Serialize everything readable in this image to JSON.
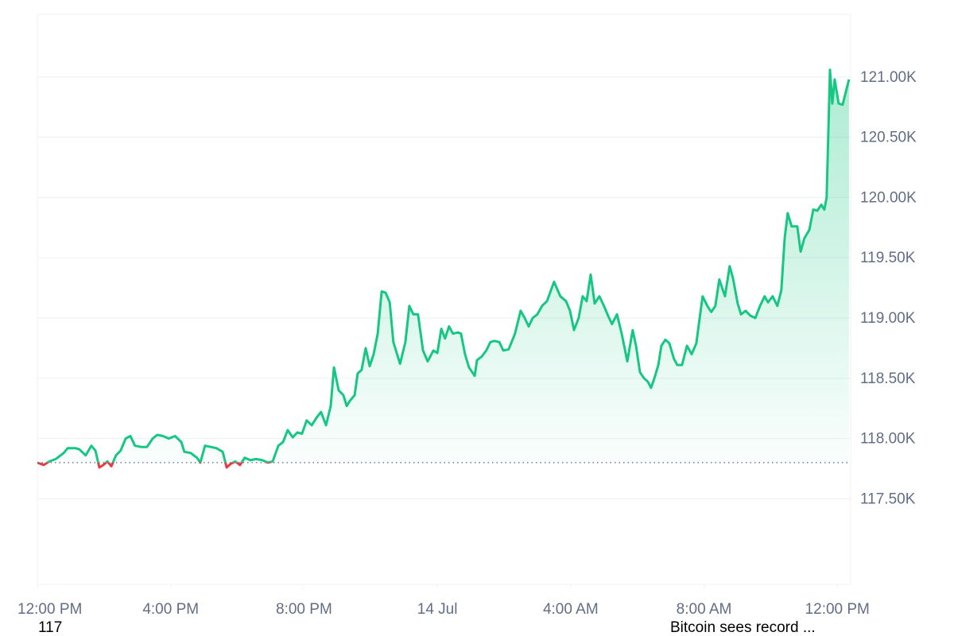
{
  "chart_data": {
    "type": "line",
    "color": "#16c784",
    "down_color": "#ea3943",
    "baseline": 117800,
    "grid": true,
    "xlim": [
      0,
      24.4
    ],
    "ylim": [
      116790,
      121520
    ],
    "xticks": [
      {
        "value": 0,
        "label": "12:00 PM"
      },
      {
        "value": 4,
        "label": "4:00 PM"
      },
      {
        "value": 8,
        "label": "8:00 PM"
      },
      {
        "value": 12,
        "label": "14 Jul"
      },
      {
        "value": 16,
        "label": "4:00 AM"
      },
      {
        "value": 20,
        "label": "8:00 AM"
      },
      {
        "value": 24,
        "label": "12:00 PM"
      }
    ],
    "yticks": [
      {
        "value": 117500,
        "label": "117.50K"
      },
      {
        "value": 118000,
        "label": "118.00K"
      },
      {
        "value": 118500,
        "label": "118.50K"
      },
      {
        "value": 119000,
        "label": "119.00K"
      },
      {
        "value": 119500,
        "label": "119.50K"
      },
      {
        "value": 120000,
        "label": "120.00K"
      },
      {
        "value": 120500,
        "label": "120.50K"
      },
      {
        "value": 121000,
        "label": "121.00K"
      }
    ],
    "annotations": [
      "117",
      "Bitcoin sees record ..."
    ],
    "x": [
      0.0,
      0.19,
      0.36,
      0.55,
      0.79,
      0.91,
      1.14,
      1.26,
      1.45,
      1.62,
      1.74,
      1.86,
      1.98,
      2.1,
      2.22,
      2.36,
      2.5,
      2.65,
      2.79,
      2.93,
      3.12,
      3.29,
      3.46,
      3.6,
      3.77,
      3.94,
      4.13,
      4.32,
      4.41,
      4.6,
      4.79,
      4.89,
      5.03,
      5.2,
      5.37,
      5.56,
      5.68,
      5.8,
      5.94,
      6.08,
      6.22,
      6.39,
      6.56,
      6.75,
      6.92,
      7.06,
      7.23,
      7.37,
      7.51,
      7.66,
      7.8,
      7.94,
      8.08,
      8.23,
      8.37,
      8.51,
      8.66,
      8.8,
      8.9,
      9.04,
      9.18,
      9.28,
      9.37,
      9.52,
      9.61,
      9.73,
      9.85,
      9.97,
      10.09,
      10.21,
      10.33,
      10.45,
      10.57,
      10.68,
      10.88,
      11.04,
      11.16,
      11.28,
      11.42,
      11.57,
      11.71,
      11.88,
      12.0,
      12.12,
      12.23,
      12.35,
      12.47,
      12.62,
      12.71,
      12.83,
      12.95,
      13.12,
      13.19,
      13.33,
      13.47,
      13.59,
      13.71,
      13.86,
      13.98,
      14.14,
      14.33,
      14.5,
      14.62,
      14.74,
      14.86,
      15.0,
      15.14,
      15.29,
      15.5,
      15.69,
      15.86,
      15.98,
      16.1,
      16.24,
      16.36,
      16.48,
      16.6,
      16.72,
      16.86,
      17.0,
      17.12,
      17.24,
      17.39,
      17.53,
      17.7,
      17.86,
      17.96,
      18.08,
      18.2,
      18.32,
      18.41,
      18.51,
      18.63,
      18.72,
      18.84,
      18.96,
      19.1,
      19.2,
      19.34,
      19.49,
      19.63,
      19.77,
      19.87,
      19.96,
      20.1,
      20.22,
      20.34,
      20.46,
      20.63,
      20.77,
      20.87,
      21.01,
      21.11,
      21.25,
      21.39,
      21.54,
      21.68,
      21.82,
      21.92,
      22.06,
      22.2,
      22.32,
      22.42,
      22.51,
      22.63,
      22.8,
      22.9,
      23.01,
      23.16,
      23.28,
      23.4,
      23.52,
      23.61,
      23.68,
      23.78,
      23.85,
      23.92,
      24.04,
      24.16,
      24.35
    ],
    "values": [
      117800,
      117780,
      117810,
      117830,
      117880,
      117920,
      117920,
      117910,
      117860,
      117940,
      117900,
      117760,
      117780,
      117810,
      117770,
      117860,
      117900,
      118000,
      118020,
      117940,
      117930,
      117930,
      118000,
      118030,
      118020,
      118000,
      118020,
      117970,
      117890,
      117880,
      117840,
      117800,
      117940,
      117930,
      117920,
      117890,
      117760,
      117790,
      117810,
      117780,
      117840,
      117820,
      117830,
      117820,
      117800,
      117810,
      117940,
      117970,
      118070,
      118010,
      118050,
      118040,
      118150,
      118110,
      118170,
      118220,
      118110,
      118270,
      118590,
      118400,
      118360,
      118270,
      118310,
      118360,
      118540,
      118570,
      118750,
      118600,
      118700,
      118870,
      119220,
      119210,
      119130,
      118800,
      118620,
      118800,
      119100,
      119030,
      119030,
      118730,
      118640,
      118730,
      118710,
      118910,
      118830,
      118930,
      118870,
      118880,
      118870,
      118700,
      118590,
      118520,
      118650,
      118680,
      118730,
      118800,
      118810,
      118800,
      118730,
      118740,
      118870,
      119060,
      119000,
      118930,
      119000,
      119030,
      119100,
      119140,
      119300,
      119180,
      119140,
      119060,
      118900,
      119000,
      119180,
      119140,
      119360,
      119120,
      119180,
      119100,
      119020,
      118950,
      119030,
      118870,
      118640,
      118900,
      118770,
      118550,
      118500,
      118470,
      118420,
      118500,
      118610,
      118770,
      118820,
      118790,
      118660,
      118610,
      118610,
      118770,
      118700,
      118790,
      119000,
      119180,
      119100,
      119050,
      119100,
      119320,
      119180,
      119430,
      119330,
      119120,
      119030,
      119060,
      119020,
      119000,
      119100,
      119180,
      119130,
      119180,
      119100,
      119230,
      119660,
      119870,
      119760,
      119760,
      119550,
      119660,
      119730,
      119900,
      119890,
      119940,
      119900,
      120000,
      121060,
      120780,
      120980,
      120780,
      120770,
      120980
    ]
  }
}
